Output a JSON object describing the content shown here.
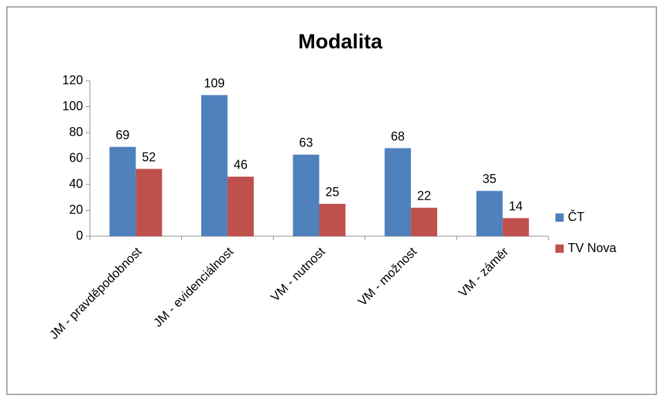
{
  "chart_data": {
    "type": "bar",
    "title": "Modalita",
    "categories": [
      "JM - pravděpodobnost",
      "JM - evidenciálnost",
      "VM - nutnost",
      "VM - možnost",
      "VM - záměr"
    ],
    "series": [
      {
        "name": "ČT",
        "color": "#4f81bd",
        "values": [
          69,
          109,
          63,
          68,
          35
        ]
      },
      {
        "name": "TV Nova",
        "color": "#c0504d",
        "values": [
          52,
          46,
          25,
          22,
          14
        ]
      }
    ],
    "ylim": [
      0,
      120
    ],
    "yticks": [
      0,
      20,
      40,
      60,
      80,
      100,
      120
    ],
    "grid": false,
    "legend": "right"
  }
}
